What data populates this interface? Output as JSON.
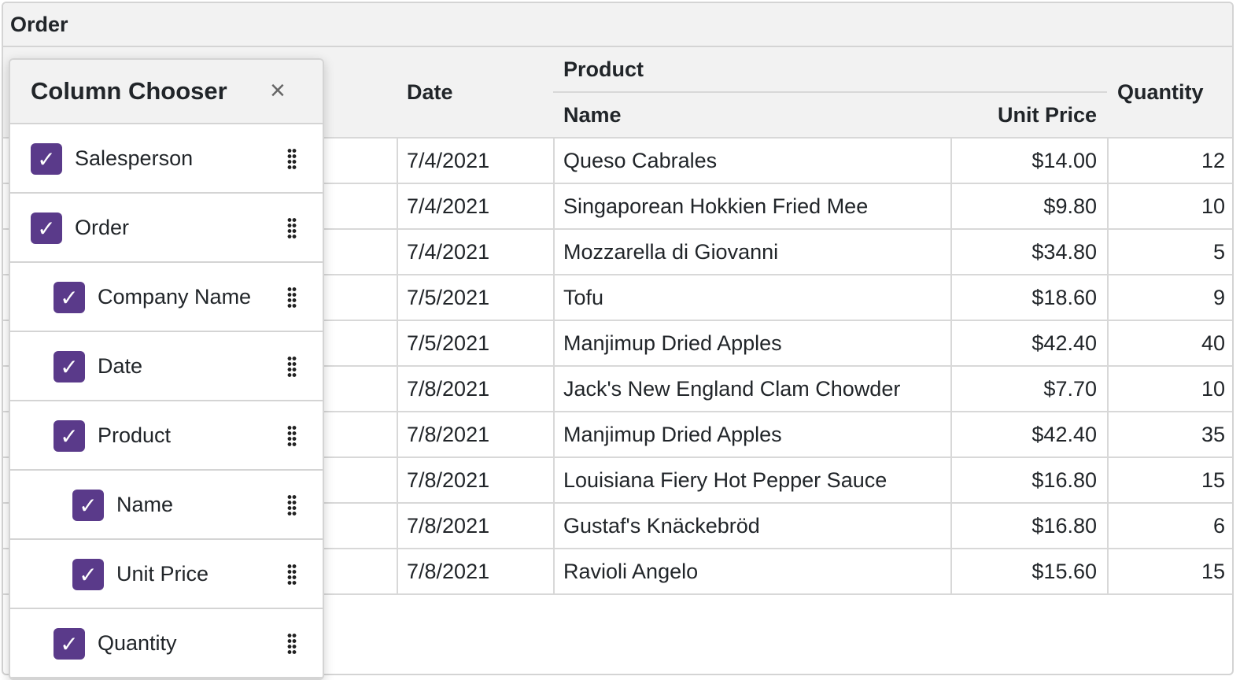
{
  "group_panel": {
    "chip": "Order"
  },
  "headers": {
    "date": "Date",
    "product": "Product",
    "name": "Name",
    "unit_price": "Unit Price",
    "quantity": "Quantity"
  },
  "rows": [
    {
      "date": "7/4/2021",
      "name": "Queso Cabrales",
      "unit_price": "$14.00",
      "quantity": "12"
    },
    {
      "date": "7/4/2021",
      "name": "Singaporean Hokkien Fried Mee",
      "unit_price": "$9.80",
      "quantity": "10"
    },
    {
      "date": "7/4/2021",
      "name": "Mozzarella di Giovanni",
      "unit_price": "$34.80",
      "quantity": "5"
    },
    {
      "date": "7/5/2021",
      "name": "Tofu",
      "unit_price": "$18.60",
      "quantity": "9"
    },
    {
      "date": "7/5/2021",
      "name": "Manjimup Dried Apples",
      "unit_price": "$42.40",
      "quantity": "40"
    },
    {
      "date": "7/8/2021",
      "name": "Jack's New England Clam Chowder",
      "unit_price": "$7.70",
      "quantity": "10"
    },
    {
      "date": "7/8/2021",
      "name": "Manjimup Dried Apples",
      "unit_price": "$42.40",
      "quantity": "35"
    },
    {
      "date": "7/8/2021",
      "name": "Louisiana Fiery Hot Pepper Sauce",
      "unit_price": "$16.80",
      "quantity": "15"
    },
    {
      "date": "7/8/2021",
      "name": "Gustaf's Knäckebröd",
      "unit_price": "$16.80",
      "quantity": "6"
    },
    {
      "date": "7/8/2021",
      "name": "Ravioli Angelo",
      "unit_price": "$15.60",
      "quantity": "15"
    }
  ],
  "column_chooser": {
    "title": "Column Chooser",
    "close_icon": "×",
    "accent": "#5a3a8a",
    "items": [
      {
        "label": "Salesperson",
        "checked": true,
        "level": 0
      },
      {
        "label": "Order",
        "checked": true,
        "level": 0
      },
      {
        "label": "Company Name",
        "checked": true,
        "level": 1
      },
      {
        "label": "Date",
        "checked": true,
        "level": 1
      },
      {
        "label": "Product",
        "checked": true,
        "level": 1
      },
      {
        "label": "Name",
        "checked": true,
        "level": 2
      },
      {
        "label": "Unit Price",
        "checked": true,
        "level": 2
      },
      {
        "label": "Quantity",
        "checked": true,
        "level": 1
      }
    ]
  }
}
